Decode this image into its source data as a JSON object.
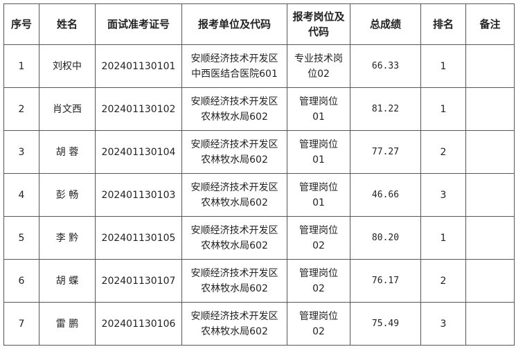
{
  "headers": [
    "序号",
    "姓名",
    "面试准考证号",
    "报考单位及代码",
    "报考岗位及代码",
    "总成绩",
    "排名",
    "备注"
  ],
  "rows": [
    {
      "no": "1",
      "name": "刘权中",
      "id": "202401130101",
      "unit1": "安顺经济技术开发区",
      "unit2": "中西医结合医院601",
      "post1": "专业技术岗",
      "post2": "位02",
      "score": "66.33",
      "rank": "1",
      "note": ""
    },
    {
      "no": "2",
      "name": "肖文西",
      "id": "202401130102",
      "unit1": "安顺经济技术开发区",
      "unit2": "农林牧水局602",
      "post1": "管理岗位",
      "post2": "01",
      "score": "81.22",
      "rank": "1",
      "note": ""
    },
    {
      "no": "3",
      "name": "胡 蓉",
      "id": "202401130104",
      "unit1": "安顺经济技术开发区",
      "unit2": "农林牧水局602",
      "post1": "管理岗位",
      "post2": "01",
      "score": "77.27",
      "rank": "2",
      "note": ""
    },
    {
      "no": "4",
      "name": "彭 畅",
      "id": "202401130103",
      "unit1": "安顺经济技术开发区",
      "unit2": "农林牧水局602",
      "post1": "管理岗位",
      "post2": "01",
      "score": "46.66",
      "rank": "3",
      "note": ""
    },
    {
      "no": "5",
      "name": "李 黔",
      "id": "202401130105",
      "unit1": "安顺经济技术开发区",
      "unit2": "农林牧水局602",
      "post1": "管理岗位",
      "post2": "02",
      "score": "80.20",
      "rank": "1",
      "note": ""
    },
    {
      "no": "6",
      "name": "胡 蝶",
      "id": "202401130107",
      "unit1": "安顺经济技术开发区",
      "unit2": "农林牧水局602",
      "post1": "管理岗位",
      "post2": "02",
      "score": "76.17",
      "rank": "2",
      "note": ""
    },
    {
      "no": "7",
      "name": "雷 鹏",
      "id": "202401130106",
      "unit1": "安顺经济技术开发区",
      "unit2": "农林牧水局602",
      "post1": "管理岗位",
      "post2": "02",
      "score": "75.49",
      "rank": "3",
      "note": ""
    }
  ]
}
